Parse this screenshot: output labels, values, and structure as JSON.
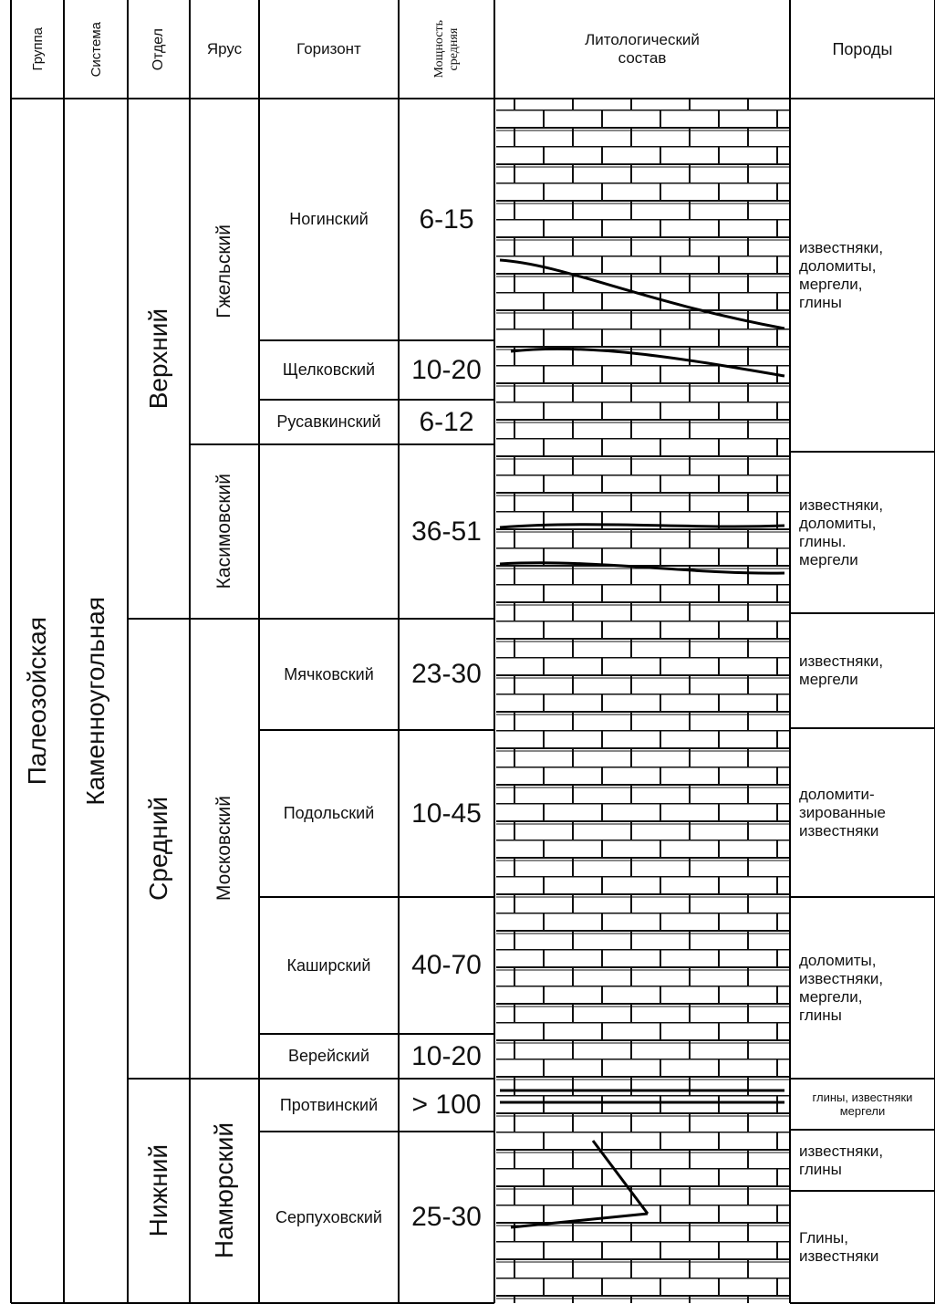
{
  "header": {
    "group": "Группа",
    "system": "Система",
    "division": "Отдел",
    "stage": "Ярус",
    "horizon": "Горизонт",
    "thickness": [
      "Мощность",
      "средняя"
    ],
    "lithology": [
      "Литологический",
      "состав"
    ],
    "rocks": "Породы"
  },
  "group": "Палеозойская",
  "system": "Каменноугольная",
  "divisions": [
    "Верхний",
    "Средний",
    "Нижний"
  ],
  "stages": [
    "Гжельский",
    "Касимовский",
    "Московский",
    "Намюрский"
  ],
  "horizons": [
    {
      "name": "Ногинский",
      "thickness": "6-15"
    },
    {
      "name": "Щелковский",
      "thickness": "10-20"
    },
    {
      "name": "Русавкинский",
      "thickness": "6-12"
    },
    {
      "thickness": "36-51"
    },
    {
      "name": "Мячковский",
      "thickness": "23-30"
    },
    {
      "name": "Подольский",
      "thickness": "10-45"
    },
    {
      "name": "Каширский",
      "thickness": "40-70"
    },
    {
      "name": "Верейский",
      "thickness": "10-20"
    },
    {
      "name": "Протвинский",
      "thickness": "> 100"
    },
    {
      "name": "Серпуховский",
      "thickness": "25-30"
    }
  ],
  "rocks": [
    [
      "известняки,",
      "доломиты,",
      "мергели,",
      "глины"
    ],
    [
      "известняки,",
      "доломиты,",
      "глины.",
      "мергели"
    ],
    [
      "известняки,",
      "мергели"
    ],
    [
      "доломити-",
      "зированные",
      "известняки"
    ],
    [
      "доломиты,",
      "известняки,",
      "мергели,",
      "глины"
    ],
    [
      "глины, известняки",
      "мергели"
    ],
    [
      "известняки,",
      "глины"
    ],
    [
      "Глины,",
      "известняки"
    ]
  ]
}
